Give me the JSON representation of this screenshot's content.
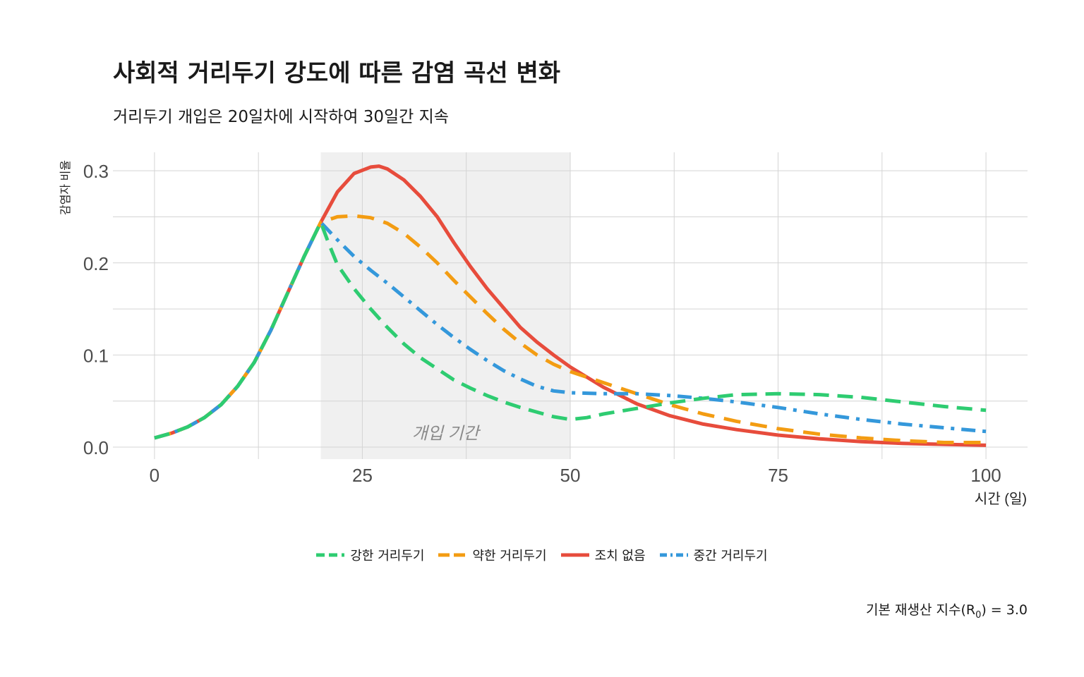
{
  "title": "사회적 거리두기 강도에 따른 감염 곡선 변화",
  "subtitle": "거리두기 개입은 20일차에 시작하여 30일간 지속",
  "caption": {
    "prefix": "기본 재생산 지수(R",
    "sub": "0",
    "suffix": ") = 3.0"
  },
  "chart_data": {
    "type": "line",
    "xlabel": "시간 (일)",
    "ylabel": "감염자 비율",
    "xlim": [
      -5,
      105
    ],
    "ylim": [
      -0.013,
      0.32
    ],
    "x_ticks": [
      0,
      25,
      50,
      75,
      100
    ],
    "y_ticks": [
      0.0,
      0.1,
      0.2,
      0.3
    ],
    "y_tick_labels": [
      "0.0",
      "0.1",
      "0.2",
      "0.3"
    ],
    "grid": true,
    "legend_position": "bottom",
    "annotation": {
      "text": "개입 기간",
      "x": 35,
      "y": 0.009
    },
    "shaded_region": {
      "x_start": 20,
      "x_end": 50,
      "color": "#f0f0f0"
    },
    "series": [
      {
        "name": "조치 없음",
        "color": "#e74c3c",
        "dash": "solid",
        "x": [
          0,
          2,
          4,
          6,
          8,
          10,
          12,
          14,
          16,
          18,
          20,
          22,
          24,
          26,
          27,
          28,
          30,
          32,
          34,
          36,
          38,
          40,
          42,
          44,
          46,
          48,
          50,
          54,
          58,
          62,
          66,
          70,
          75,
          80,
          85,
          90,
          95,
          100
        ],
        "y": [
          0.01,
          0.015,
          0.022,
          0.032,
          0.046,
          0.066,
          0.092,
          0.127,
          0.167,
          0.207,
          0.244,
          0.277,
          0.297,
          0.304,
          0.305,
          0.302,
          0.29,
          0.272,
          0.25,
          0.222,
          0.196,
          0.172,
          0.151,
          0.13,
          0.114,
          0.1,
          0.087,
          0.065,
          0.047,
          0.034,
          0.025,
          0.019,
          0.013,
          0.009,
          0.006,
          0.004,
          0.003,
          0.002
        ]
      },
      {
        "name": "약한 거리두기",
        "color": "#f39c12",
        "dash": "long-dash",
        "x": [
          0,
          2,
          4,
          6,
          8,
          10,
          12,
          14,
          16,
          18,
          20,
          22,
          24,
          26,
          28,
          30,
          32,
          34,
          36,
          38,
          40,
          42,
          44,
          46,
          48,
          50,
          54,
          58,
          62,
          66,
          70,
          75,
          80,
          85,
          90,
          95,
          100
        ],
        "y": [
          0.01,
          0.015,
          0.022,
          0.032,
          0.046,
          0.066,
          0.092,
          0.127,
          0.167,
          0.207,
          0.244,
          0.25,
          0.251,
          0.249,
          0.243,
          0.232,
          0.217,
          0.2,
          0.181,
          0.163,
          0.145,
          0.128,
          0.113,
          0.1,
          0.09,
          0.082,
          0.07,
          0.058,
          0.046,
          0.036,
          0.028,
          0.02,
          0.014,
          0.01,
          0.007,
          0.005,
          0.005
        ]
      },
      {
        "name": "중간 거리두기",
        "color": "#3498db",
        "dash": "dot-dash",
        "x": [
          0,
          2,
          4,
          6,
          8,
          10,
          12,
          14,
          16,
          18,
          20,
          22,
          24,
          26,
          28,
          30,
          32,
          34,
          36,
          38,
          40,
          42,
          44,
          46,
          48,
          50,
          54,
          58,
          62,
          66,
          70,
          75,
          80,
          85,
          90,
          95,
          100
        ],
        "y": [
          0.01,
          0.015,
          0.022,
          0.032,
          0.046,
          0.066,
          0.092,
          0.127,
          0.167,
          0.207,
          0.244,
          0.225,
          0.207,
          0.192,
          0.178,
          0.163,
          0.148,
          0.133,
          0.119,
          0.106,
          0.094,
          0.083,
          0.074,
          0.066,
          0.061,
          0.059,
          0.058,
          0.058,
          0.056,
          0.053,
          0.049,
          0.043,
          0.036,
          0.03,
          0.025,
          0.021,
          0.017
        ]
      },
      {
        "name": "강한 거리두기",
        "color": "#2ecc71",
        "dash": "dash",
        "x": [
          0,
          2,
          4,
          6,
          8,
          10,
          12,
          14,
          16,
          18,
          20,
          21,
          22,
          24,
          26,
          28,
          30,
          32,
          34,
          36,
          38,
          40,
          42,
          44,
          46,
          48,
          50,
          52,
          54,
          58,
          62,
          66,
          70,
          75,
          80,
          85,
          90,
          95,
          100
        ],
        "y": [
          0.01,
          0.015,
          0.022,
          0.032,
          0.046,
          0.066,
          0.092,
          0.127,
          0.167,
          0.207,
          0.244,
          0.22,
          0.198,
          0.172,
          0.15,
          0.13,
          0.112,
          0.097,
          0.085,
          0.073,
          0.064,
          0.056,
          0.049,
          0.043,
          0.038,
          0.033,
          0.03,
          0.032,
          0.036,
          0.042,
          0.048,
          0.053,
          0.057,
          0.058,
          0.057,
          0.054,
          0.049,
          0.044,
          0.04
        ]
      }
    ]
  },
  "legend": [
    {
      "label": "강한 거리두기",
      "color": "#2ecc71",
      "dash": "dash"
    },
    {
      "label": "약한 거리두기",
      "color": "#f39c12",
      "dash": "long-dash"
    },
    {
      "label": "조치 없음",
      "color": "#e74c3c",
      "dash": "solid"
    },
    {
      "label": "중간 거리두기",
      "color": "#3498db",
      "dash": "dot-dash"
    }
  ]
}
